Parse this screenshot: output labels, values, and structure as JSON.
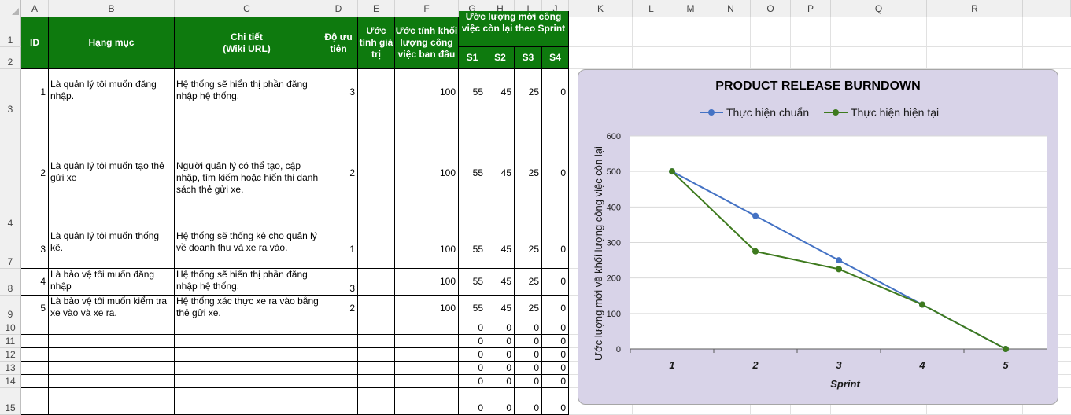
{
  "columns": [
    "A",
    "B",
    "C",
    "D",
    "E",
    "F",
    "G",
    "H",
    "I",
    "J",
    "K",
    "L",
    "M",
    "N",
    "O",
    "P",
    "Q",
    "R"
  ],
  "row_numbers": [
    "1",
    "2",
    "3",
    "4",
    "7",
    "8",
    "9",
    "10",
    "11",
    "12",
    "13",
    "14",
    "15"
  ],
  "header": {
    "id": "ID",
    "item": "Hạng mục",
    "detail": "Chi tiết\n(Wiki URL)",
    "priority": "Độ ưu tiên",
    "value": "Ước tính giá trị",
    "initial": "Ước tính khối lượng công việc ban đầu",
    "remaining": "Ước lượng mới công việc còn lại theo Sprint",
    "s1": "S1",
    "s2": "S2",
    "s3": "S3",
    "s4": "S4"
  },
  "rows": [
    {
      "id": "1",
      "item": "Là quản lý tôi muốn đăng nhập.",
      "detail": "Hệ thống sẽ hiển thị phần đăng nhập hệ thống.",
      "priority": "3",
      "value": "",
      "initial": "100",
      "s1": "55",
      "s2": "45",
      "s3": "25",
      "s4": "0"
    },
    {
      "id": "2",
      "item": "Là quản lý tôi muốn tạo thẻ gửi xe",
      "detail": "Người quản lý có thể tạo, cập nhập, tìm kiếm hoặc hiển thị danh sách thẻ gửi xe.",
      "priority": "2",
      "value": "",
      "initial": "100",
      "s1": "55",
      "s2": "45",
      "s3": "25",
      "s4": "0"
    },
    {
      "id": "3",
      "item": "Là quản lý tôi muốn thống kê.",
      "detail": "Hệ thống sẽ thống kê cho quản lý về doanh thu và xe ra vào.",
      "priority": "1",
      "value": "",
      "initial": "100",
      "s1": "55",
      "s2": "45",
      "s3": "25",
      "s4": "0"
    },
    {
      "id": "4",
      "item": "Là bảo vệ tôi muốn đăng nhập",
      "detail": "Hệ thống sẽ hiển thị phần đăng nhập hệ thống.",
      "priority": "3",
      "value": "",
      "initial": "100",
      "s1": "55",
      "s2": "45",
      "s3": "25",
      "s4": "0"
    },
    {
      "id": "5",
      "item": "Là bảo vệ tôi muốn kiểm tra xe vào và xe ra.",
      "detail": "Hệ thống xác thực xe ra vào bằng thẻ gửi xe.",
      "priority": "2",
      "value": "",
      "initial": "100",
      "s1": "55",
      "s2": "45",
      "s3": "25",
      "s4": "0"
    },
    {
      "id": "",
      "item": "",
      "detail": "",
      "priority": "",
      "value": "",
      "initial": "",
      "s1": "0",
      "s2": "0",
      "s3": "0",
      "s4": "0"
    },
    {
      "id": "",
      "item": "",
      "detail": "",
      "priority": "",
      "value": "",
      "initial": "",
      "s1": "0",
      "s2": "0",
      "s3": "0",
      "s4": "0"
    },
    {
      "id": "",
      "item": "",
      "detail": "",
      "priority": "",
      "value": "",
      "initial": "",
      "s1": "0",
      "s2": "0",
      "s3": "0",
      "s4": "0"
    },
    {
      "id": "",
      "item": "",
      "detail": "",
      "priority": "",
      "value": "",
      "initial": "",
      "s1": "0",
      "s2": "0",
      "s3": "0",
      "s4": "0"
    },
    {
      "id": "",
      "item": "",
      "detail": "",
      "priority": "",
      "value": "",
      "initial": "",
      "s1": "0",
      "s2": "0",
      "s3": "0",
      "s4": "0"
    },
    {
      "id": "",
      "item": "",
      "detail": "",
      "priority": "",
      "value": "",
      "initial": "",
      "s1": "0",
      "s2": "0",
      "s3": "0",
      "s4": "0"
    }
  ],
  "chart_data": {
    "type": "line",
    "title": "PRODUCT RELEASE BURNDOWN",
    "xlabel": "Sprint",
    "ylabel": "Ước lượng mới về khối lượng công việc còn lại",
    "x": [
      1,
      2,
      3,
      4,
      5
    ],
    "ylim": [
      0,
      600
    ],
    "yticks": [
      0,
      100,
      200,
      300,
      400,
      500,
      600
    ],
    "grid": true,
    "legend": "top",
    "series": [
      {
        "name": "Thực hiện chuẩn",
        "color": "#4472c4",
        "values": [
          500,
          375,
          250,
          125,
          0
        ]
      },
      {
        "name": "Thực hiện hiện tại",
        "color": "#3e7a1e",
        "values": [
          500,
          275,
          225,
          125,
          0
        ]
      }
    ]
  }
}
